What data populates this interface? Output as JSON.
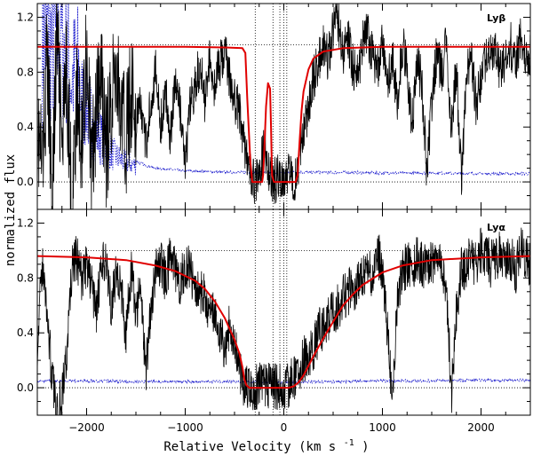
{
  "chart_data": {
    "type": "line",
    "xlabel": "Relative Velocity (km s",
    "xlabel_sup": "-1",
    "xlabel_close": ")",
    "ylabel": "normalized flux",
    "xlim": [
      -2500,
      2500
    ],
    "xticks": [
      -2000,
      -1000,
      0,
      1000,
      2000
    ],
    "reference_velocities": [
      -290,
      -110,
      -40,
      0,
      30
    ],
    "continuum_level": 1.0,
    "zero_level": 0.0,
    "colors": {
      "data": "#000000",
      "model": "#e00000",
      "error": "#1a1acc"
    },
    "panels": [
      {
        "id": "lyb",
        "label": "Lyβ",
        "ylim": [
          -0.2,
          1.3
        ],
        "yticks": [
          "0.0",
          "0.4",
          "0.8",
          "1.2"
        ],
        "yticks_values": [
          0.0,
          0.4,
          0.8,
          1.2
        ],
        "model": {
          "x": [
            -2500,
            -1000,
            -600,
            -420,
            -390,
            -370,
            -340,
            -320,
            -300,
            -260,
            -220,
            -210,
            -200,
            -180,
            -160,
            -140,
            -130,
            -120,
            -100,
            -80,
            -60,
            -40,
            -20,
            0,
            40,
            80,
            100,
            120,
            140,
            160,
            180,
            200,
            250,
            300,
            400,
            600,
            1000,
            2500
          ],
          "y": [
            0.985,
            0.985,
            0.98,
            0.975,
            0.94,
            0.6,
            0.15,
            0.0,
            0.0,
            0.0,
            0.0,
            0.05,
            0.2,
            0.55,
            0.72,
            0.68,
            0.4,
            0.05,
            0.0,
            0.0,
            0.0,
            0.0,
            0.0,
            0.0,
            0.0,
            0.0,
            0.0,
            0.0,
            0.05,
            0.3,
            0.52,
            0.66,
            0.82,
            0.9,
            0.95,
            0.975,
            0.985,
            0.985
          ]
        },
        "flux": {
          "x": [
            -2500,
            -2450,
            -2400,
            -2350,
            -2300,
            -2250,
            -2200,
            -2150,
            -2100,
            -2050,
            -2000,
            -1950,
            -1900,
            -1850,
            -1800,
            -1750,
            -1700,
            -1650,
            -1600,
            -1550,
            -1500,
            -1450,
            -1400,
            -1350,
            -1300,
            -1250,
            -1200,
            -1150,
            -1100,
            -1050,
            -1000,
            -950,
            -900,
            -850,
            -800,
            -750,
            -700,
            -650,
            -600,
            -550,
            -500,
            -450,
            -400,
            -350,
            -300,
            -250,
            -200,
            -150,
            -100,
            -50,
            0,
            50,
            100,
            150,
            200,
            250,
            300,
            350,
            400,
            450,
            500,
            550,
            600,
            650,
            700,
            750,
            800,
            850,
            900,
            950,
            1000,
            1050,
            1100,
            1150,
            1200,
            1250,
            1300,
            1350,
            1400,
            1450,
            1500,
            1550,
            1600,
            1650,
            1700,
            1750,
            1800,
            1850,
            1900,
            1950,
            2000,
            2050,
            2100,
            2150,
            2200,
            2250,
            2300,
            2350,
            2400,
            2450,
            2500
          ],
          "y": [
            0.4,
            0.1,
            0.9,
            -0.1,
            1.1,
            0.2,
            0.8,
            -0.2,
            0.6,
            0.3,
            1.0,
            0.1,
            0.5,
            0.75,
            0.2,
            0.6,
            0.85,
            0.5,
            0.3,
            0.7,
            0.45,
            0.55,
            0.25,
            0.6,
            0.8,
            0.4,
            0.65,
            0.35,
            0.75,
            0.5,
            0.1,
            0.55,
            0.7,
            0.85,
            0.6,
            0.9,
            0.7,
            0.85,
            0.95,
            0.75,
            0.6,
            0.5,
            0.3,
            0.05,
            0.0,
            0.02,
            0.3,
            0.08,
            0.0,
            0.05,
            0.02,
            0.1,
            0.0,
            0.15,
            0.4,
            0.55,
            0.75,
            0.85,
            1.0,
            0.9,
            1.1,
            1.2,
            0.95,
            1.05,
            0.85,
            0.75,
            1.0,
            1.1,
            0.9,
            0.8,
            1.0,
            0.7,
            0.9,
            0.6,
            1.0,
            0.85,
            0.4,
            0.9,
            0.7,
            0.05,
            0.6,
            0.95,
            0.8,
            1.0,
            0.4,
            0.85,
            0.0,
            0.8,
            0.9,
            0.55,
            0.75,
            0.9,
            1.0,
            0.95,
            0.8,
            0.9,
            1.0,
            0.85,
            1.05,
            0.95,
            0.9
          ]
        },
        "error": {
          "x": [
            -2450,
            -2400,
            -2350,
            -2300,
            -2250,
            -2200,
            -2150,
            -2100,
            -2050,
            -2000,
            -1950,
            -1900,
            -1850,
            -1800,
            -1750,
            -1700,
            -1650,
            -1600,
            -1500,
            -1400,
            -1300,
            -1000,
            -500,
            0,
            500,
            1000,
            1500,
            2000,
            2500
          ],
          "y": [
            1.3,
            1.3,
            1.25,
            1.3,
            1.3,
            1.2,
            0.9,
            1.1,
            0.75,
            0.7,
            0.55,
            0.45,
            0.4,
            0.32,
            0.27,
            0.23,
            0.2,
            0.18,
            0.15,
            0.12,
            0.1,
            0.08,
            0.07,
            0.07,
            0.07,
            0.065,
            0.065,
            0.06,
            0.06
          ]
        }
      },
      {
        "id": "lya",
        "label": "Lyα",
        "ylim": [
          -0.2,
          1.3
        ],
        "yticks": [
          "0.0",
          "0.4",
          "0.8",
          "1.2"
        ],
        "yticks_values": [
          0.0,
          0.4,
          0.8,
          1.2
        ],
        "model": {
          "x": [
            -2500,
            -2000,
            -1600,
            -1300,
            -1100,
            -900,
            -800,
            -700,
            -600,
            -500,
            -450,
            -420,
            -400,
            -380,
            -350,
            -300,
            -200,
            -100,
            0,
            50,
            100,
            150,
            200,
            250,
            300,
            400,
            500,
            600,
            700,
            800,
            1000,
            1200,
            1500,
            2000,
            2500
          ],
          "y": [
            0.96,
            0.95,
            0.93,
            0.89,
            0.85,
            0.78,
            0.72,
            0.63,
            0.51,
            0.35,
            0.25,
            0.15,
            0.06,
            0.02,
            0.0,
            0.0,
            0.0,
            0.0,
            0.0,
            0.0,
            0.01,
            0.04,
            0.09,
            0.16,
            0.23,
            0.36,
            0.48,
            0.6,
            0.68,
            0.75,
            0.84,
            0.89,
            0.93,
            0.95,
            0.96
          ]
        },
        "flux": {
          "x": [
            -2500,
            -2450,
            -2400,
            -2350,
            -2300,
            -2250,
            -2200,
            -2150,
            -2100,
            -2050,
            -2000,
            -1950,
            -1900,
            -1850,
            -1800,
            -1750,
            -1700,
            -1650,
            -1600,
            -1550,
            -1500,
            -1450,
            -1400,
            -1350,
            -1300,
            -1250,
            -1200,
            -1150,
            -1100,
            -1050,
            -1000,
            -950,
            -900,
            -850,
            -800,
            -750,
            -700,
            -650,
            -600,
            -550,
            -500,
            -450,
            -400,
            -350,
            -300,
            -250,
            -200,
            -150,
            -100,
            -50,
            0,
            50,
            100,
            150,
            200,
            250,
            300,
            350,
            400,
            450,
            500,
            550,
            600,
            650,
            700,
            750,
            800,
            850,
            900,
            950,
            1000,
            1050,
            1100,
            1150,
            1200,
            1250,
            1300,
            1350,
            1400,
            1450,
            1500,
            1550,
            1600,
            1650,
            1700,
            1750,
            1800,
            1850,
            1900,
            1950,
            2000,
            2050,
            2100,
            2150,
            2200,
            2250,
            2300,
            2350,
            2400,
            2450,
            2500
          ],
          "y": [
            0.3,
            0.9,
            0.55,
            0.05,
            -0.15,
            -0.05,
            0.25,
            0.85,
            0.95,
            0.8,
            0.9,
            0.75,
            0.55,
            0.85,
            0.95,
            0.6,
            0.85,
            0.7,
            0.4,
            0.85,
            0.55,
            0.75,
            0.1,
            0.6,
            0.85,
            0.9,
            0.8,
            0.95,
            0.85,
            0.75,
            0.9,
            0.85,
            0.75,
            0.7,
            0.65,
            0.5,
            0.55,
            0.4,
            0.3,
            0.45,
            0.35,
            0.15,
            0.0,
            0.02,
            -0.01,
            0.01,
            0.0,
            0.02,
            0.0,
            0.01,
            -0.02,
            0.03,
            0.08,
            0.1,
            0.2,
            0.25,
            0.3,
            0.4,
            0.45,
            0.5,
            0.55,
            0.6,
            0.65,
            0.7,
            0.72,
            0.75,
            0.8,
            0.85,
            0.8,
            1.0,
            0.85,
            0.4,
            -0.05,
            0.6,
            0.85,
            0.9,
            0.85,
            0.95,
            0.9,
            0.85,
            0.9,
            0.95,
            0.85,
            0.7,
            -0.05,
            0.55,
            0.85,
            0.9,
            0.95,
            0.9,
            1.0,
            0.95,
            0.9,
            0.95,
            1.0,
            0.9,
            0.95,
            0.85,
            1.0,
            0.95,
            0.9
          ]
        },
        "error": {
          "x": [
            -2500,
            -2000,
            -1500,
            -1000,
            -500,
            0,
            500,
            1000,
            1500,
            2000,
            2500
          ],
          "y": [
            0.05,
            0.05,
            0.045,
            0.045,
            0.045,
            0.04,
            0.045,
            0.05,
            0.05,
            0.055,
            0.055
          ]
        }
      }
    ]
  }
}
